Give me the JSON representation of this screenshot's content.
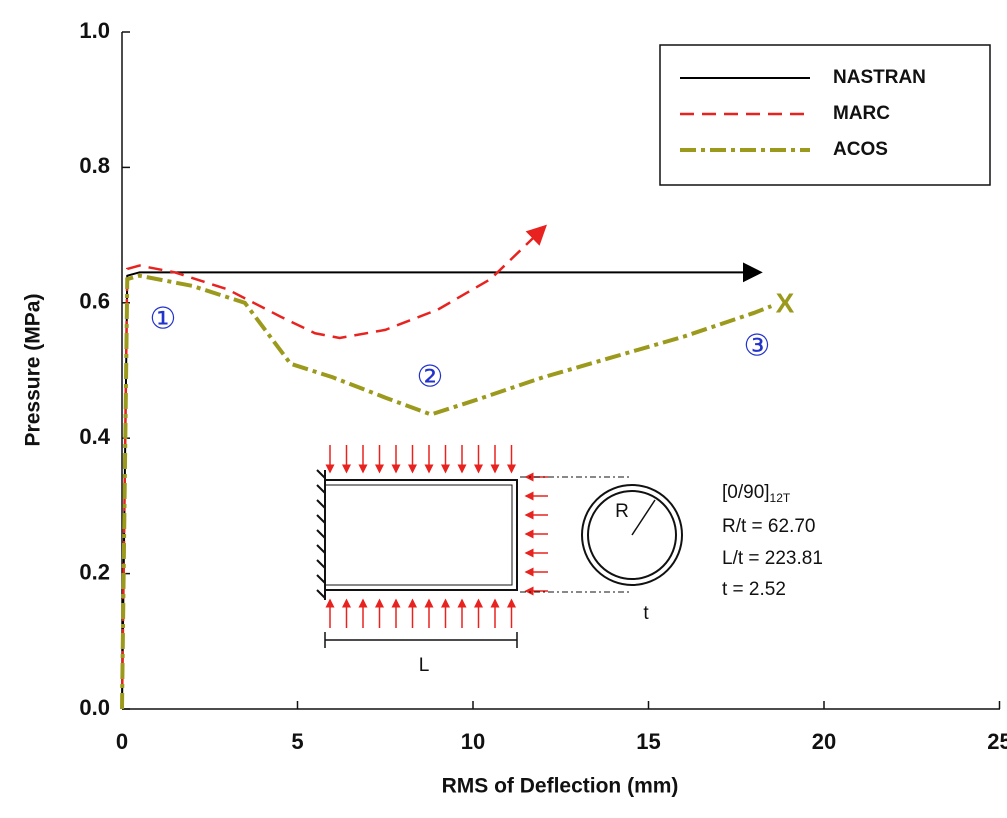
{
  "chart_data": {
    "type": "line",
    "xlabel": "RMS of Deflection (mm)",
    "ylabel": "Pressure (MPa)",
    "xlim": [
      0,
      25
    ],
    "ylim": [
      0,
      1.0
    ],
    "xticks": [
      0,
      5,
      10,
      15,
      20,
      25
    ],
    "yticks": [
      {
        "value": 0,
        "label": "0.0"
      },
      {
        "value": 0.2,
        "label": "0.2"
      },
      {
        "value": 0.4,
        "label": "0.4"
      },
      {
        "value": 0.6,
        "label": "0.6"
      },
      {
        "value": 0.8,
        "label": "0.8"
      },
      {
        "value": 1.0,
        "label": "1.0"
      }
    ],
    "series": [
      {
        "name": "NASTRAN",
        "color": "#000000",
        "x": [
          0,
          0.15,
          0.5,
          17.8
        ],
        "values": [
          0,
          0.64,
          0.645,
          0.645
        ]
      },
      {
        "name": "MARC",
        "color": "#e8231f",
        "x": [
          0,
          0.15,
          0.5,
          1.5,
          3,
          4.5,
          5.5,
          6.2,
          7.5,
          9,
          10.5,
          11.8
        ],
        "values": [
          0,
          0.65,
          0.655,
          0.645,
          0.62,
          0.58,
          0.555,
          0.548,
          0.56,
          0.59,
          0.635,
          0.7
        ]
      },
      {
        "name": "ACOS",
        "color": "#9c9a1c",
        "x": [
          0,
          0.15,
          0.5,
          2,
          3.5,
          4.8,
          6,
          7.5,
          8.8,
          10,
          12,
          14,
          16,
          18,
          18.5
        ],
        "values": [
          0,
          0.635,
          0.64,
          0.625,
          0.6,
          0.51,
          0.49,
          0.46,
          0.435,
          0.455,
          0.49,
          0.52,
          0.55,
          0.585,
          0.595
        ]
      }
    ],
    "end_marker": "X",
    "annotations": [
      "①",
      "②",
      "③"
    ],
    "inset": {
      "layup": "[0/90]",
      "layup_sub": "12T",
      "r_ratio": "R/t = 62.70",
      "l_ratio": "L/t = 223.81",
      "thickness": "t = 2.52",
      "r_label": "R",
      "t_label": "t",
      "l_label": "L"
    }
  }
}
